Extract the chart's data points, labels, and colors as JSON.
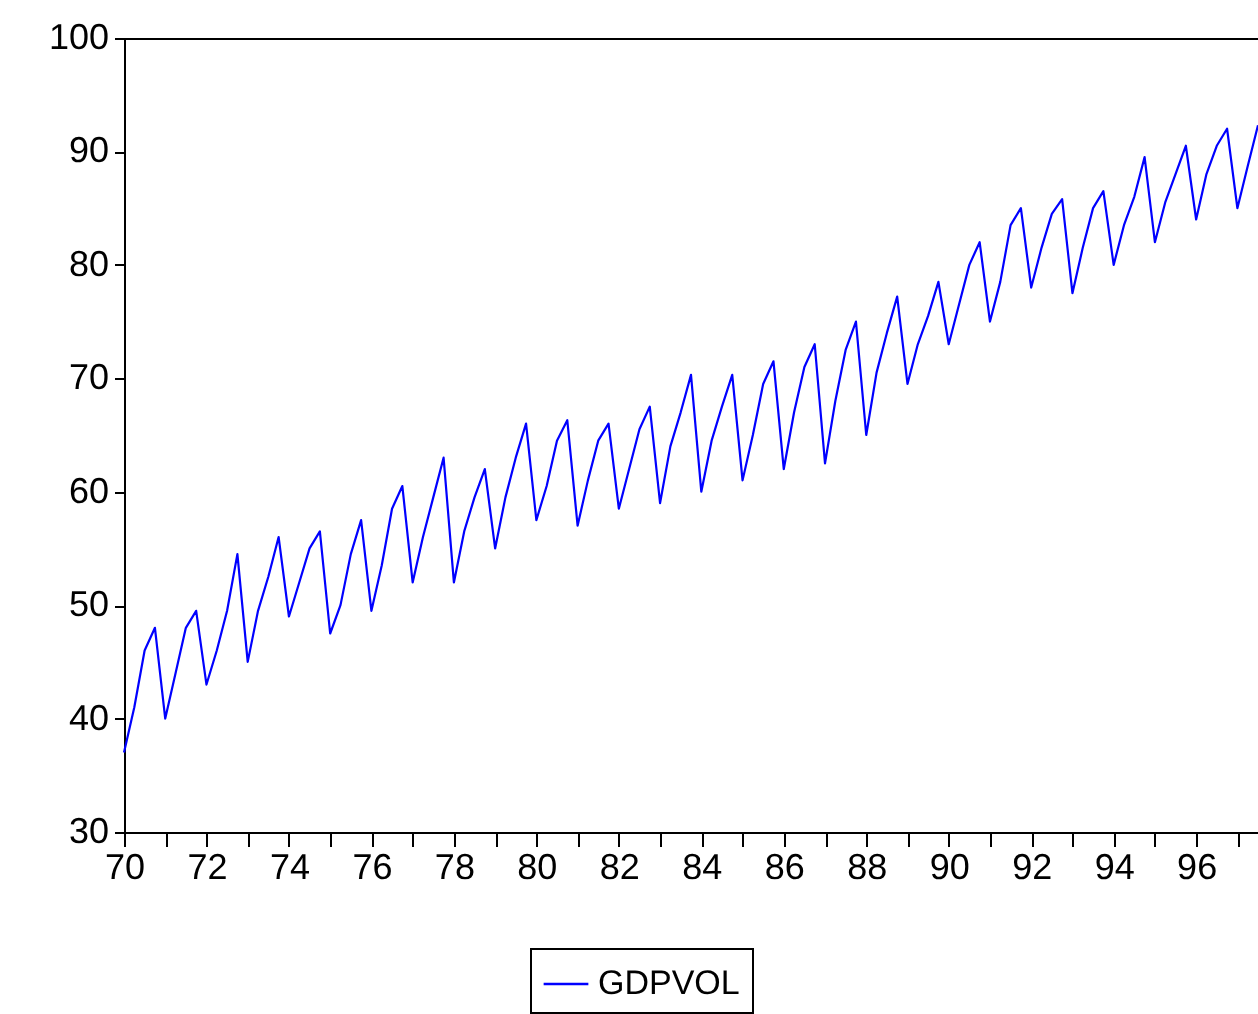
{
  "chart_data": {
    "type": "line",
    "xlim": [
      70,
      97.5
    ],
    "ylim": [
      30,
      100
    ],
    "xticks": [
      70,
      {
        "value": 71,
        "label": null
      },
      72,
      {
        "value": 73,
        "label": null
      },
      74,
      {
        "value": 75,
        "label": null
      },
      76,
      {
        "value": 77,
        "label": null
      },
      78,
      {
        "value": 79,
        "label": null
      },
      80,
      {
        "value": 81,
        "label": null
      },
      82,
      {
        "value": 83,
        "label": null
      },
      84,
      {
        "value": 85,
        "label": null
      },
      86,
      {
        "value": 87,
        "label": null
      },
      88,
      {
        "value": 89,
        "label": null
      },
      90,
      {
        "value": 91,
        "label": null
      },
      92,
      {
        "value": 93,
        "label": null
      },
      94,
      {
        "value": 95,
        "label": null
      },
      96,
      {
        "value": 97,
        "label": null
      }
    ],
    "yticks": [
      30,
      40,
      50,
      60,
      70,
      80,
      90,
      100
    ],
    "grid": false,
    "legend": "bottom",
    "marker": "none",
    "line_style": "solid",
    "x": [
      70,
      70.25,
      70.5,
      70.75,
      71,
      71.25,
      71.5,
      71.75,
      72,
      72.25,
      72.5,
      72.75,
      73,
      73.25,
      73.5,
      73.75,
      74,
      74.25,
      74.5,
      74.75,
      75,
      75.25,
      75.5,
      75.75,
      76,
      76.25,
      76.5,
      76.75,
      77,
      77.25,
      77.5,
      77.75,
      78,
      78.25,
      78.5,
      78.75,
      79,
      79.25,
      79.5,
      79.75,
      80,
      80.25,
      80.5,
      80.75,
      81,
      81.25,
      81.5,
      81.75,
      82,
      82.25,
      82.5,
      82.75,
      83,
      83.25,
      83.5,
      83.75,
      84,
      84.25,
      84.5,
      84.75,
      85,
      85.25,
      85.5,
      85.75,
      86,
      86.25,
      86.5,
      86.75,
      87,
      87.25,
      87.5,
      87.75,
      88,
      88.25,
      88.5,
      88.75,
      89,
      89.25,
      89.5,
      89.75,
      90,
      90.25,
      90.5,
      90.75,
      91,
      91.25,
      91.5,
      91.75,
      92,
      92.25,
      92.5,
      92.75,
      93,
      93.25,
      93.5,
      93.75,
      94,
      94.25,
      94.5,
      94.75,
      95,
      95.25,
      95.5,
      95.75,
      96,
      96.25,
      96.5,
      96.75,
      97,
      97.25,
      97.5
    ],
    "series": [
      {
        "name": "GDPVOL",
        "color": "#0000ff",
        "values": [
          37,
          41,
          46,
          48,
          40,
          44,
          48,
          49.5,
          43,
          46,
          49.5,
          54.5,
          45,
          49.5,
          52.5,
          56,
          49,
          52,
          55,
          56.5,
          47.5,
          50,
          54.5,
          57.5,
          49.5,
          53.5,
          58.5,
          60.5,
          52,
          56,
          59.5,
          63,
          52,
          56.5,
          59.5,
          62,
          55,
          59.5,
          63,
          66,
          57.5,
          60.5,
          64.5,
          66.3,
          57,
          61,
          64.5,
          66,
          58.5,
          62,
          65.5,
          67.5,
          59,
          64,
          67,
          70.3,
          60,
          64.5,
          67.5,
          70.3,
          61,
          65,
          69.5,
          71.5,
          62,
          67,
          71,
          73,
          62.5,
          68,
          72.5,
          75,
          65,
          70.5,
          74,
          77.2,
          69.5,
          73,
          75.5,
          78.5,
          73,
          76.5,
          80,
          82,
          75,
          78.5,
          83.5,
          85,
          78,
          81.5,
          84.5,
          85.8,
          77.5,
          81.5,
          85,
          86.5,
          80,
          83.5,
          86,
          89.5,
          82,
          85.5,
          88,
          90.5,
          84,
          88,
          90.5,
          92,
          85,
          88.7,
          92.3
        ]
      }
    ]
  }
}
